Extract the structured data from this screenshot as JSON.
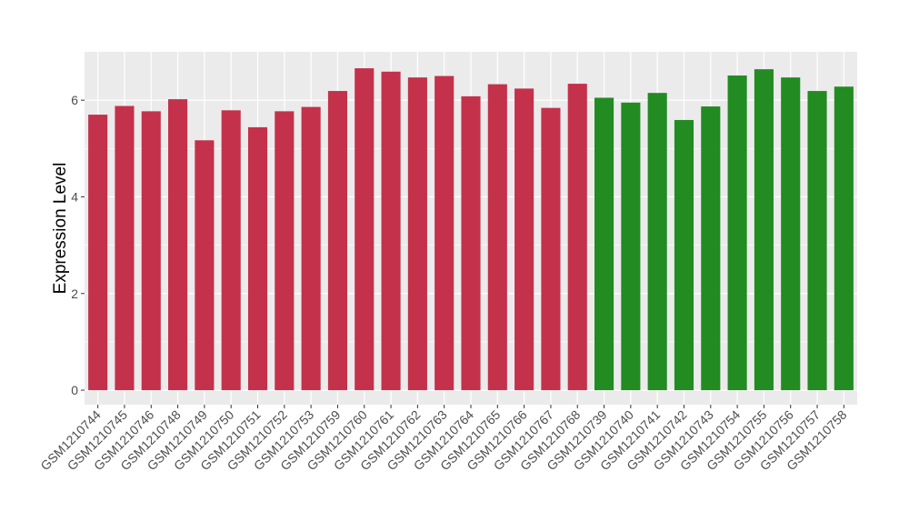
{
  "chart_data": {
    "type": "bar",
    "ylabel": "Expression Level",
    "xlabel": "",
    "title": "",
    "ylim": [
      -0.3,
      7.0
    ],
    "yticks": [
      0,
      2,
      4,
      6
    ],
    "grid": true,
    "legend": "none",
    "panel_background": "#EBEBEB",
    "colors": {
      "group1": "#C4314B",
      "group2": "#228B22",
      "grid": "#FFFFFF",
      "tick_text": "#4D4D4D",
      "axis_title": "#000000"
    },
    "categories": [
      "GSM1210744",
      "GSM1210745",
      "GSM1210746",
      "GSM1210748",
      "GSM1210749",
      "GSM1210750",
      "GSM1210751",
      "GSM1210752",
      "GSM1210753",
      "GSM1210759",
      "GSM1210760",
      "GSM1210761",
      "GSM1210762",
      "GSM1210763",
      "GSM1210764",
      "GSM1210765",
      "GSM1210766",
      "GSM1210767",
      "GSM1210768",
      "GSM1210739",
      "GSM1210740",
      "GSM1210741",
      "GSM1210742",
      "GSM1210743",
      "GSM1210754",
      "GSM1210755",
      "GSM1210756",
      "GSM1210757",
      "GSM1210758"
    ],
    "values": [
      5.7,
      5.88,
      5.77,
      6.02,
      5.17,
      5.79,
      5.44,
      5.77,
      5.86,
      6.19,
      6.66,
      6.59,
      6.47,
      6.5,
      6.08,
      6.33,
      6.24,
      5.84,
      6.34,
      6.05,
      5.95,
      6.15,
      5.59,
      5.87,
      6.51,
      6.64,
      6.47,
      6.19,
      6.28
    ],
    "groups": [
      "group1",
      "group1",
      "group1",
      "group1",
      "group1",
      "group1",
      "group1",
      "group1",
      "group1",
      "group1",
      "group1",
      "group1",
      "group1",
      "group1",
      "group1",
      "group1",
      "group1",
      "group1",
      "group1",
      "group2",
      "group2",
      "group2",
      "group2",
      "group2",
      "group2",
      "group2",
      "group2",
      "group2",
      "group2"
    ]
  }
}
